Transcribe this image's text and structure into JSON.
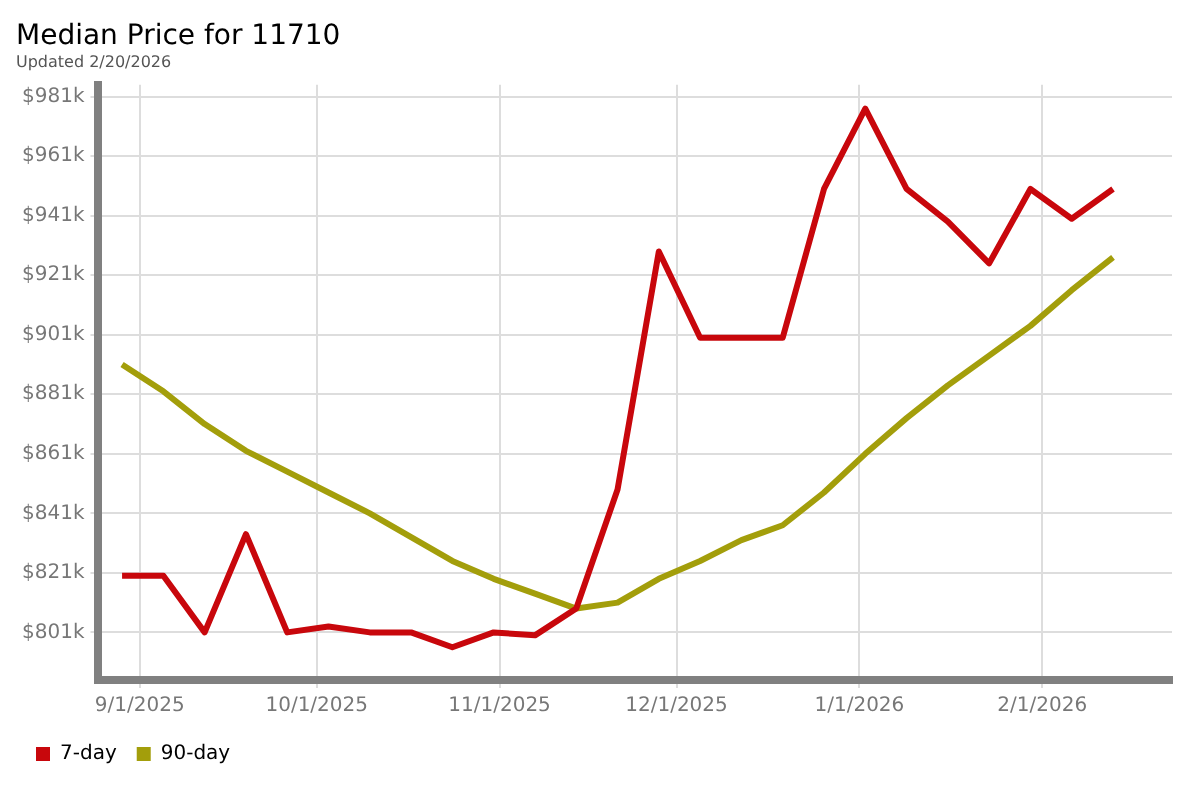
{
  "chart_data": {
    "type": "line",
    "title": "Median Price for 11710",
    "subtitle": "Updated 2/20/2026",
    "x": [
      "2025-08-29",
      "2025-09-05",
      "2025-09-12",
      "2025-09-19",
      "2025-09-26",
      "2025-10-03",
      "2025-10-10",
      "2025-10-17",
      "2025-10-24",
      "2025-10-31",
      "2025-11-07",
      "2025-11-14",
      "2025-11-21",
      "2025-11-28",
      "2025-12-05",
      "2025-12-12",
      "2025-12-19",
      "2025-12-26",
      "2026-01-02",
      "2026-01-09",
      "2026-01-16",
      "2026-01-23",
      "2026-01-30",
      "2026-02-06",
      "2026-02-13"
    ],
    "series": [
      {
        "name": "7-day",
        "color": "#c8070c",
        "values": [
          820,
          820,
          801,
          834,
          801,
          803,
          801,
          801,
          796,
          801,
          800,
          809,
          849,
          929,
          900,
          900,
          900,
          950,
          977,
          950,
          939,
          925,
          950,
          940,
          950
        ]
      },
      {
        "name": "90-day",
        "color": "#a39e0b",
        "values": [
          891,
          882,
          871,
          862,
          855,
          848,
          841,
          833,
          825,
          819,
          814,
          809,
          811,
          819,
          825,
          832,
          837,
          848,
          861,
          873,
          884,
          894,
          904,
          916,
          927
        ]
      }
    ],
    "xlim": [
      "2025-08-25",
      "2026-02-23"
    ],
    "xticks": [
      {
        "value": "2025-09-01",
        "label": "9/1/2025"
      },
      {
        "value": "2025-10-01",
        "label": "10/1/2025"
      },
      {
        "value": "2025-11-01",
        "label": "11/1/2025"
      },
      {
        "value": "2025-12-01",
        "label": "12/1/2025"
      },
      {
        "value": "2026-01-01",
        "label": "1/1/2026"
      },
      {
        "value": "2026-02-01",
        "label": "2/1/2026"
      }
    ],
    "ylim": [
      785,
      985
    ],
    "yticks": [
      {
        "value": 801,
        "label": "$801k"
      },
      {
        "value": 821,
        "label": "$821k"
      },
      {
        "value": 841,
        "label": "$841k"
      },
      {
        "value": 861,
        "label": "$861k"
      },
      {
        "value": 881,
        "label": "$881k"
      },
      {
        "value": 901,
        "label": "$901k"
      },
      {
        "value": 921,
        "label": "$921k"
      },
      {
        "value": 941,
        "label": "$941k"
      },
      {
        "value": 961,
        "label": "$961k"
      },
      {
        "value": 981,
        "label": "$981k"
      }
    ],
    "grid": true,
    "legend": "bottom left",
    "marker": "none",
    "line_style": "solid"
  }
}
